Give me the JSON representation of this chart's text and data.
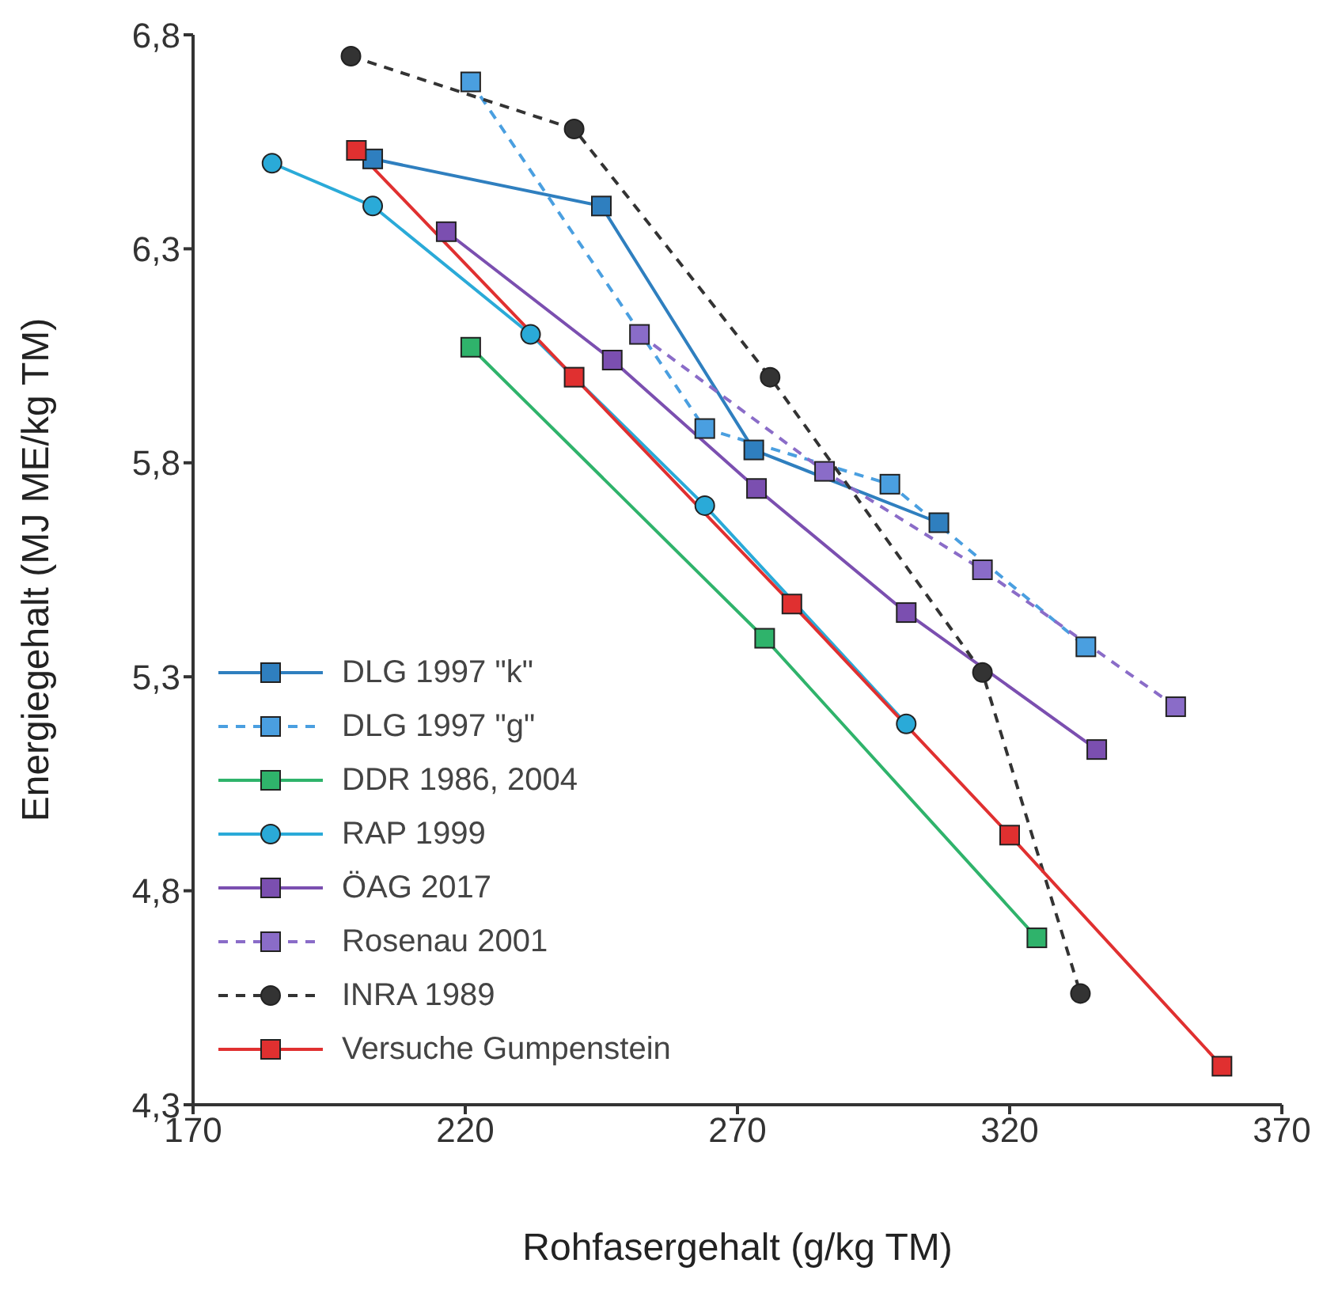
{
  "chart_data": {
    "type": "line",
    "xlabel": "Rohfasergehalt (g/kg TM)",
    "ylabel": "Energiegehalt (MJ ME/kg TM)",
    "xlim": [
      170,
      370
    ],
    "xticks": [
      170,
      220,
      270,
      320,
      370
    ],
    "ylim": [
      4.3,
      6.8
    ],
    "yticks": [
      {
        "value": 4.3,
        "label": "4,3"
      },
      {
        "value": 4.8,
        "label": "4,8"
      },
      {
        "value": 5.3,
        "label": "5,3"
      },
      {
        "value": 5.8,
        "label": "5,8"
      },
      {
        "value": 6.3,
        "label": "6,3"
      },
      {
        "value": 6.8,
        "label": "6,8"
      }
    ],
    "grid": false,
    "legend": "bottom left",
    "series": [
      {
        "name": "DLG 1997 \"k\"",
        "color": "#2f7fbf",
        "marker": "square",
        "line_style": "solid",
        "x": [
          203,
          245,
          273,
          307
        ],
        "values": [
          6.51,
          6.4,
          5.83,
          5.66
        ]
      },
      {
        "name": "DLG 1997 \"g\"",
        "color": "#4a9fe0",
        "marker": "square",
        "line_style": "dashed",
        "x": [
          221,
          264,
          298,
          334
        ],
        "values": [
          6.69,
          5.88,
          5.75,
          5.37
        ]
      },
      {
        "name": "DDR 1986, 2004",
        "color": "#2fb36b",
        "marker": "square",
        "line_style": "solid",
        "x": [
          221,
          275,
          325
        ],
        "values": [
          6.07,
          5.39,
          4.69
        ]
      },
      {
        "name": "RAP 1999",
        "color": "#2aaad8",
        "marker": "circle",
        "line_style": "solid",
        "x": [
          184.5,
          203,
          232,
          264,
          301
        ],
        "values": [
          6.5,
          6.4,
          6.1,
          5.7,
          5.19
        ]
      },
      {
        "name": "ÖAG 2017",
        "color": "#7b4fb0",
        "marker": "square",
        "line_style": "solid",
        "x": [
          216.5,
          247,
          273.5,
          301,
          336
        ],
        "values": [
          6.34,
          6.04,
          5.74,
          5.45,
          5.13
        ]
      },
      {
        "name": "Rosenau 2001",
        "color": "#8a6cc8",
        "marker": "square",
        "line_style": "dashed",
        "x": [
          252,
          286,
          315,
          350.5
        ],
        "values": [
          6.1,
          5.78,
          5.55,
          5.23
        ]
      },
      {
        "name": "INRA 1989",
        "color": "#333333",
        "marker": "circle",
        "line_style": "dashed",
        "x": [
          199,
          240,
          276,
          315,
          333
        ],
        "values": [
          6.75,
          6.58,
          6.0,
          5.31,
          4.56
        ]
      },
      {
        "name": "Versuche Gumpenstein",
        "color": "#e03030",
        "marker": "square",
        "line_style": "solid",
        "x": [
          200,
          240,
          280,
          320,
          359
        ],
        "values": [
          6.53,
          6.0,
          5.47,
          4.93,
          4.39
        ]
      }
    ]
  }
}
